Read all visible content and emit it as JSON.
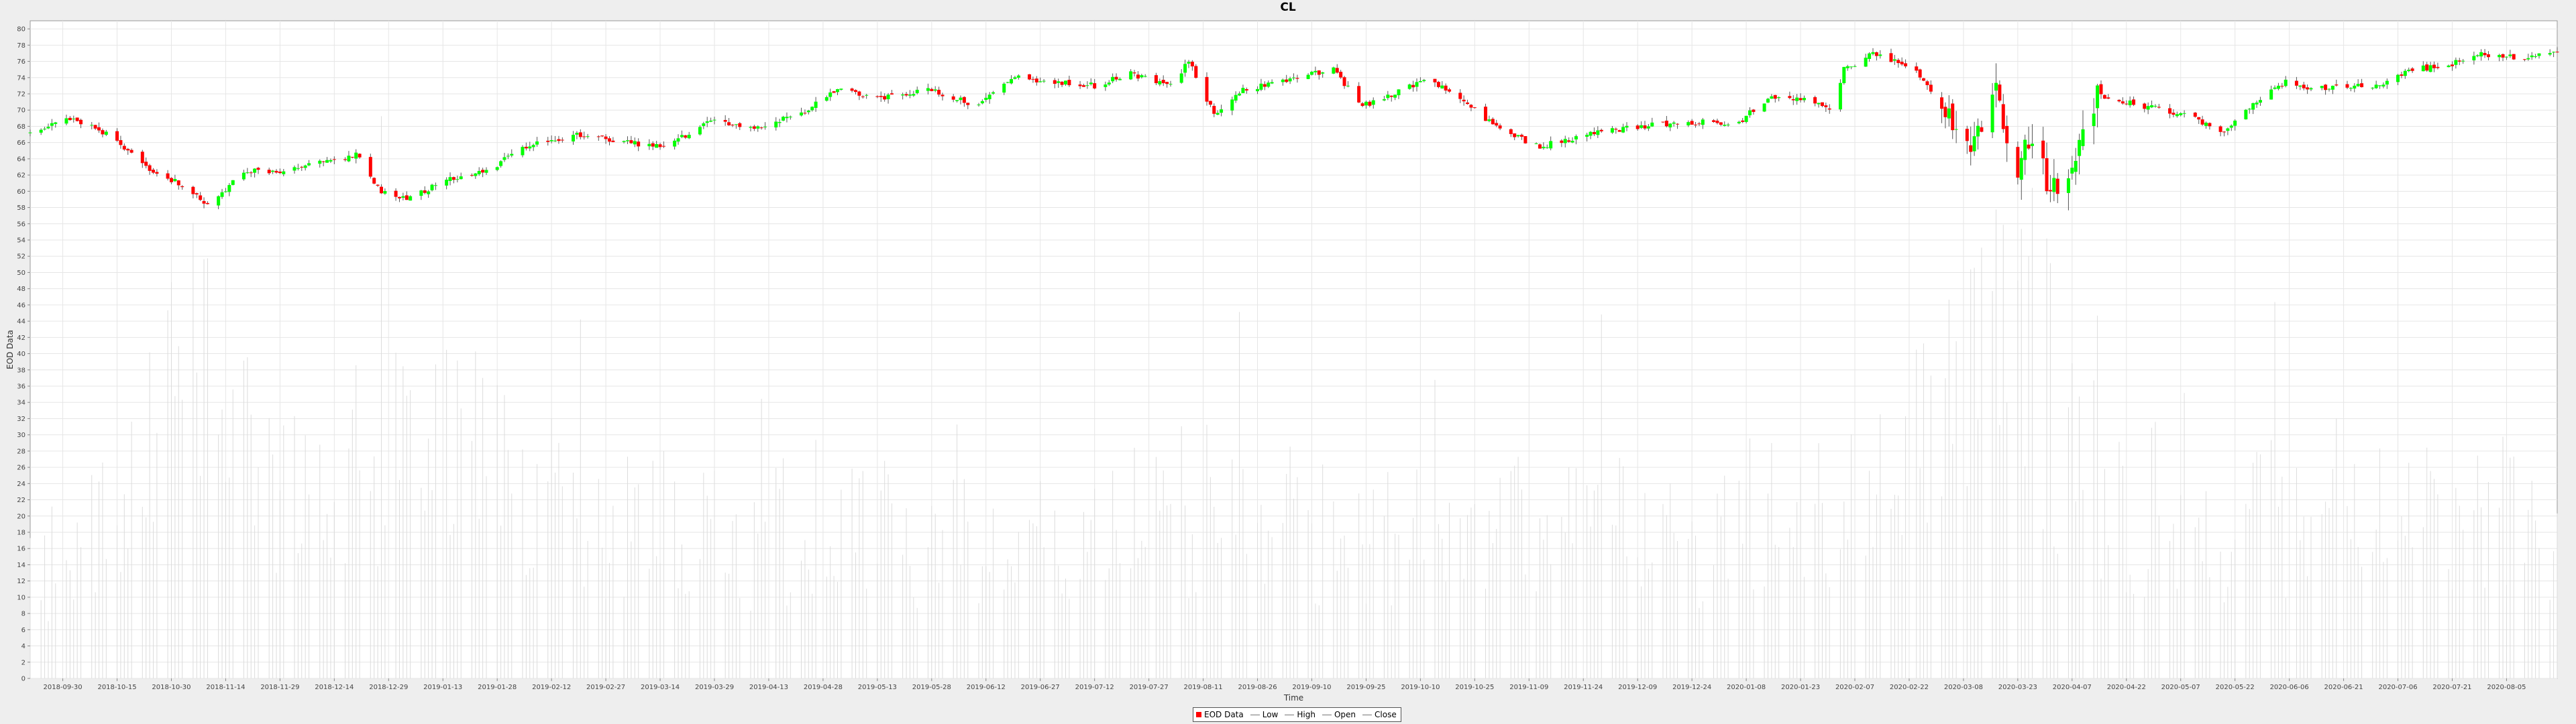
{
  "chart_data": {
    "type": "candlestick",
    "title": "CL",
    "xlabel": "Time",
    "ylabel": "EOD Data",
    "ylim": [
      0,
      81
    ],
    "y_ticks": [
      0,
      2,
      4,
      6,
      8,
      10,
      12,
      14,
      16,
      18,
      20,
      22,
      24,
      26,
      28,
      30,
      32,
      34,
      36,
      38,
      40,
      42,
      44,
      46,
      48,
      50,
      52,
      54,
      56,
      58,
      60,
      62,
      64,
      66,
      68,
      70,
      72,
      74,
      76,
      78,
      80
    ],
    "x_range": [
      "2018-09-21",
      "2020-08-19"
    ],
    "x_ticks": [
      "2018-09-30",
      "2018-10-15",
      "2018-10-30",
      "2018-11-14",
      "2018-11-29",
      "2018-12-14",
      "2018-12-29",
      "2019-01-13",
      "2019-01-28",
      "2019-02-12",
      "2019-02-27",
      "2019-03-14",
      "2019-03-29",
      "2019-04-13",
      "2019-04-28",
      "2019-05-13",
      "2019-05-28",
      "2019-06-12",
      "2019-06-27",
      "2019-07-12",
      "2019-07-27",
      "2019-08-11",
      "2019-08-26",
      "2019-09-10",
      "2019-09-25",
      "2019-10-10",
      "2019-10-25",
      "2019-11-09",
      "2019-11-24",
      "2019-12-09",
      "2019-12-24",
      "2020-01-08",
      "2020-01-23",
      "2020-02-07",
      "2020-02-22",
      "2020-03-08",
      "2020-03-23",
      "2020-04-07",
      "2020-04-22",
      "2020-05-07",
      "2020-05-22",
      "2020-06-06",
      "2020-06-21",
      "2020-07-06",
      "2020-07-21",
      "2020-08-05"
    ],
    "grid": true,
    "legend_position": "bottom",
    "legend": [
      "EOD Data",
      "Low",
      "High",
      "Open",
      "Close"
    ],
    "close_anchors": [
      [
        "2018-09-21",
        67.2
      ],
      [
        "2018-10-03",
        69.0
      ],
      [
        "2018-10-12",
        67.0
      ],
      [
        "2018-10-25",
        62.5
      ],
      [
        "2018-11-01",
        61.0
      ],
      [
        "2018-11-09",
        58.5
      ],
      [
        "2018-11-20",
        62.5
      ],
      [
        "2018-11-30",
        62.5
      ],
      [
        "2018-12-10",
        63.5
      ],
      [
        "2018-12-20",
        64.5
      ],
      [
        "2018-12-27",
        60.0
      ],
      [
        "2019-01-03",
        59.0
      ],
      [
        "2019-01-15",
        61.5
      ],
      [
        "2019-01-25",
        62.5
      ],
      [
        "2019-02-05",
        65.5
      ],
      [
        "2019-02-20",
        67.0
      ],
      [
        "2019-03-05",
        66.0
      ],
      [
        "2019-03-15",
        65.5
      ],
      [
        "2019-03-28",
        68.5
      ],
      [
        "2019-04-10",
        68.0
      ],
      [
        "2019-04-22",
        69.5
      ],
      [
        "2019-05-02",
        72.5
      ],
      [
        "2019-05-15",
        71.5
      ],
      [
        "2019-05-28",
        72.5
      ],
      [
        "2019-06-10",
        70.5
      ],
      [
        "2019-06-20",
        74.0
      ],
      [
        "2019-07-01",
        73.5
      ],
      [
        "2019-07-12",
        73.0
      ],
      [
        "2019-07-22",
        74.5
      ],
      [
        "2019-08-02",
        73.0
      ],
      [
        "2019-08-07",
        76.0
      ],
      [
        "2019-08-14",
        69.5
      ],
      [
        "2019-08-22",
        72.5
      ],
      [
        "2019-09-05",
        74.0
      ],
      [
        "2019-09-16",
        75.0
      ],
      [
        "2019-09-24",
        70.5
      ],
      [
        "2019-10-05",
        72.5
      ],
      [
        "2019-10-12",
        74.0
      ],
      [
        "2019-10-22",
        71.0
      ],
      [
        "2019-11-01",
        67.5
      ],
      [
        "2019-11-12",
        65.5
      ],
      [
        "2019-11-25",
        67.0
      ],
      [
        "2019-12-10",
        68.0
      ],
      [
        "2019-12-22",
        68.5
      ],
      [
        "2020-01-06",
        68.5
      ],
      [
        "2020-01-14",
        71.5
      ],
      [
        "2020-01-22",
        71.5
      ],
      [
        "2020-02-01",
        70.0
      ],
      [
        "2020-02-04",
        75.0
      ],
      [
        "2020-02-12",
        77.0
      ],
      [
        "2020-02-24",
        75.0
      ],
      [
        "2020-03-02",
        70.0
      ],
      [
        "2020-03-10",
        65.5
      ],
      [
        "2020-03-17",
        72.0
      ],
      [
        "2020-03-22",
        62.0
      ],
      [
        "2020-03-27",
        67.0
      ],
      [
        "2020-04-01",
        60.0
      ],
      [
        "2020-04-06",
        63.0
      ],
      [
        "2020-04-14",
        72.0
      ],
      [
        "2020-04-22",
        71.0
      ],
      [
        "2020-05-02",
        70.0
      ],
      [
        "2020-05-11",
        69.0
      ],
      [
        "2020-05-18",
        67.0
      ],
      [
        "2020-05-28",
        71.0
      ],
      [
        "2020-06-05",
        73.5
      ],
      [
        "2020-06-12",
        72.5
      ],
      [
        "2020-06-20",
        73.0
      ],
      [
        "2020-07-01",
        73.0
      ],
      [
        "2020-07-10",
        75.0
      ],
      [
        "2020-07-20",
        75.5
      ],
      [
        "2020-07-28",
        77.0
      ],
      [
        "2020-08-05",
        76.5
      ],
      [
        "2020-08-12",
        76.5
      ],
      [
        "2020-08-19",
        77.0
      ]
    ],
    "volume_profile": [
      [
        "2018-09-21",
        12
      ],
      [
        "2018-10-10",
        20
      ],
      [
        "2018-10-20",
        25
      ],
      [
        "2018-11-01",
        36
      ],
      [
        "2018-11-12",
        40
      ],
      [
        "2018-11-25",
        28
      ],
      [
        "2018-12-10",
        22
      ],
      [
        "2018-12-25",
        30
      ],
      [
        "2019-01-10",
        28
      ],
      [
        "2019-01-25",
        30
      ],
      [
        "2019-02-15",
        20
      ],
      [
        "2019-03-10",
        18
      ],
      [
        "2019-04-10",
        17
      ],
      [
        "2019-05-10",
        19
      ],
      [
        "2019-06-15",
        17
      ],
      [
        "2019-07-15",
        18
      ],
      [
        "2019-08-10",
        22
      ],
      [
        "2019-09-10",
        19
      ],
      [
        "2019-10-10",
        18
      ],
      [
        "2019-11-10",
        20
      ],
      [
        "2019-12-10",
        18
      ],
      [
        "2020-01-10",
        20
      ],
      [
        "2020-02-01",
        20
      ],
      [
        "2020-02-15",
        25
      ],
      [
        "2020-03-05",
        32
      ],
      [
        "2020-03-15",
        38
      ],
      [
        "2020-03-25",
        44
      ],
      [
        "2020-04-05",
        30
      ],
      [
        "2020-04-20",
        22
      ],
      [
        "2020-05-15",
        20
      ],
      [
        "2020-06-15",
        21
      ],
      [
        "2020-07-15",
        20
      ],
      [
        "2020-08-19",
        20
      ]
    ],
    "colors": {
      "up": "#00ff00",
      "down": "#ff0000",
      "wick": "#555555",
      "volume": "#dcdcdc",
      "grid": "#e6e6e6",
      "plot_bg": "#ffffff",
      "page_bg": "#eeeeee"
    }
  }
}
